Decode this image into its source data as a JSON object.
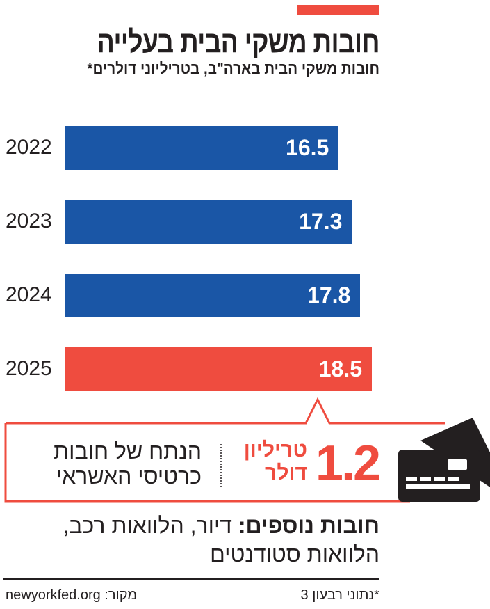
{
  "title": "חובות משקי הבית בעלייה",
  "subtitle": "חובות משקי הבית בארה\"ב, בטריליוני דולרים*",
  "colors": {
    "accent": "#ef4c3f",
    "bar": "#1a56a6",
    "text": "#231f20"
  },
  "chart_data": {
    "type": "bar",
    "orientation": "horizontal",
    "title": "חובות משקי הבית בעלייה",
    "categories": [
      "2022",
      "2023",
      "2024",
      "2025"
    ],
    "values": [
      16.5,
      17.3,
      17.8,
      18.5
    ],
    "data_labels": [
      "16.5",
      "17.3",
      "17.8",
      "18.5"
    ],
    "highlight": "2025",
    "xlim": [
      0,
      18.5
    ],
    "grid": false
  },
  "callout": {
    "amount": "1.2",
    "unit_line1": "טריליון",
    "unit_line2": "דולר",
    "desc_line1": "הנתח של חובות",
    "desc_line2": "כרטיסי האשראי",
    "icon": "credit-card-icon"
  },
  "other": {
    "label": "חובות נוספים:",
    "text": " דיור, הלוואות רכב, הלוואות סטודנטים"
  },
  "footer": {
    "source": "מקור: newyorkfed.org",
    "note": "*נתוני רבעון 3"
  }
}
